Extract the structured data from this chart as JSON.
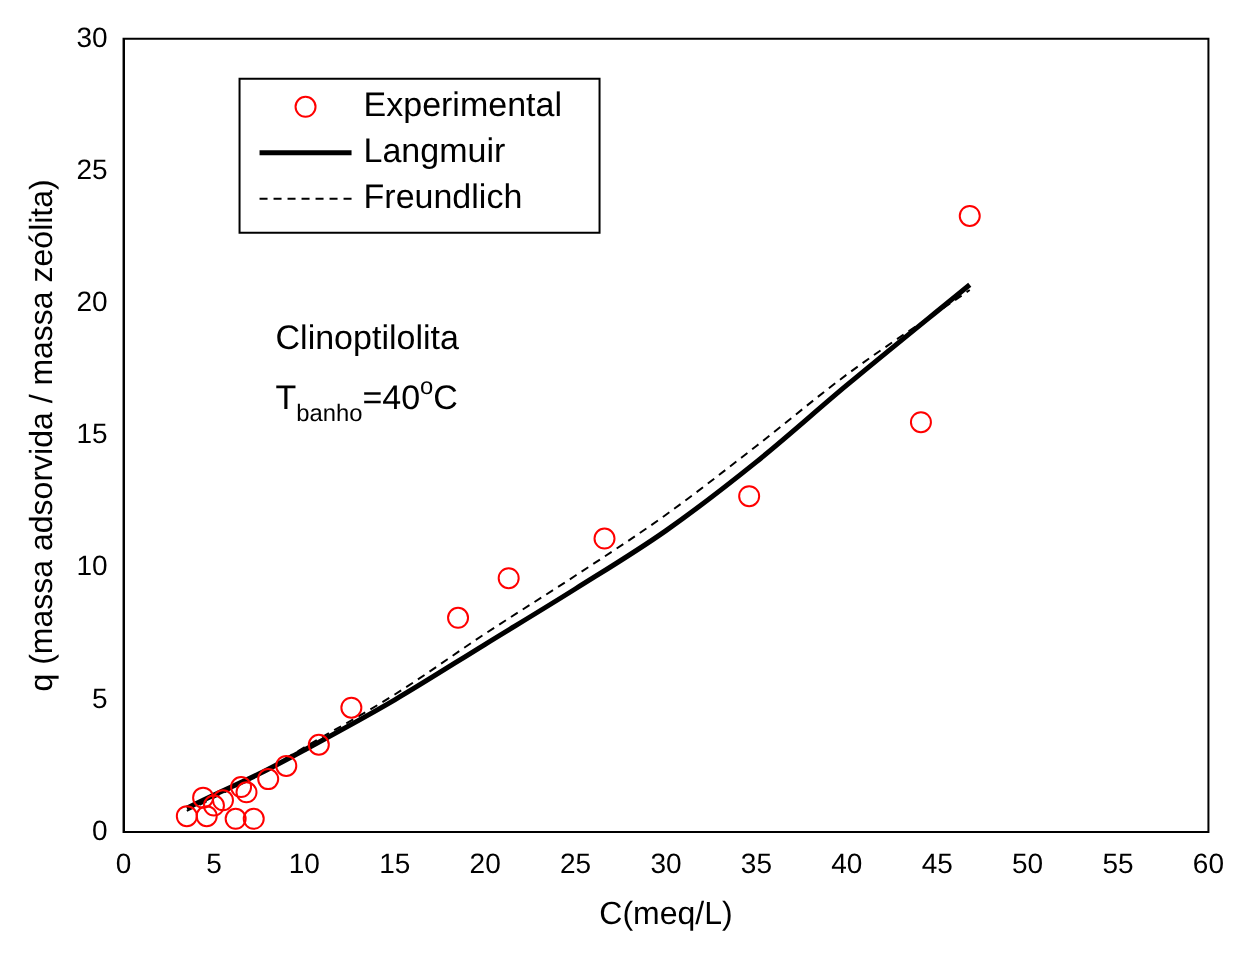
{
  "chart_data": {
    "type": "scatter",
    "xlabel": "C(meq/L)",
    "ylabel": "q (massa adsorvida / massa zeólita)",
    "xlim": [
      0,
      60
    ],
    "xticks": [
      0,
      5,
      10,
      15,
      20,
      25,
      30,
      35,
      40,
      45,
      50,
      55,
      60
    ],
    "ylim": [
      0,
      30
    ],
    "yticks": [
      0,
      5,
      10,
      15,
      20,
      25,
      30
    ],
    "grid": false,
    "legend": "top left",
    "annotations": [
      "Clinoptilolita",
      "T$_{banho}$=40$^{o}$C"
    ],
    "series": [
      {
        "name": "Experimental",
        "type": "scatter",
        "marker": "circle",
        "color": "#ff0000",
        "x": [
          3.5,
          4.4,
          4.6,
          5,
          5.5,
          6.2,
          6.5,
          6.8,
          7.2,
          8,
          9,
          10.8,
          12.6,
          18.5,
          21.3,
          26.6,
          34.6,
          44.1,
          46.8
        ],
        "values": [
          0.6,
          1.3,
          0.6,
          1.0,
          1.2,
          0.5,
          1.7,
          1.5,
          0.5,
          2.0,
          2.5,
          3.3,
          4.7,
          8.1,
          9.6,
          11.1,
          12.7,
          15.5,
          23.3
        ]
      },
      {
        "name": "Langmuir",
        "type": "line",
        "marker": "none",
        "line_style": "solid",
        "color": "#000000",
        "x": [
          3.5,
          5,
          7.5,
          10,
          15,
          20,
          25,
          30,
          35,
          40,
          46.8
        ],
        "values": [
          0.9,
          1.4,
          2.2,
          3.1,
          5.0,
          7.1,
          9.2,
          11.4,
          14.0,
          16.9,
          20.7
        ]
      },
      {
        "name": "Freundlich",
        "type": "line",
        "marker": "none",
        "line_style": "dashed",
        "color": "#000000",
        "x": [
          3.5,
          5,
          7.5,
          10,
          15,
          20,
          25,
          30,
          35,
          40,
          46.8
        ],
        "values": [
          0.8,
          1.3,
          2.2,
          3.2,
          5.2,
          7.5,
          9.7,
          12.0,
          14.6,
          17.3,
          20.5
        ]
      }
    ]
  }
}
